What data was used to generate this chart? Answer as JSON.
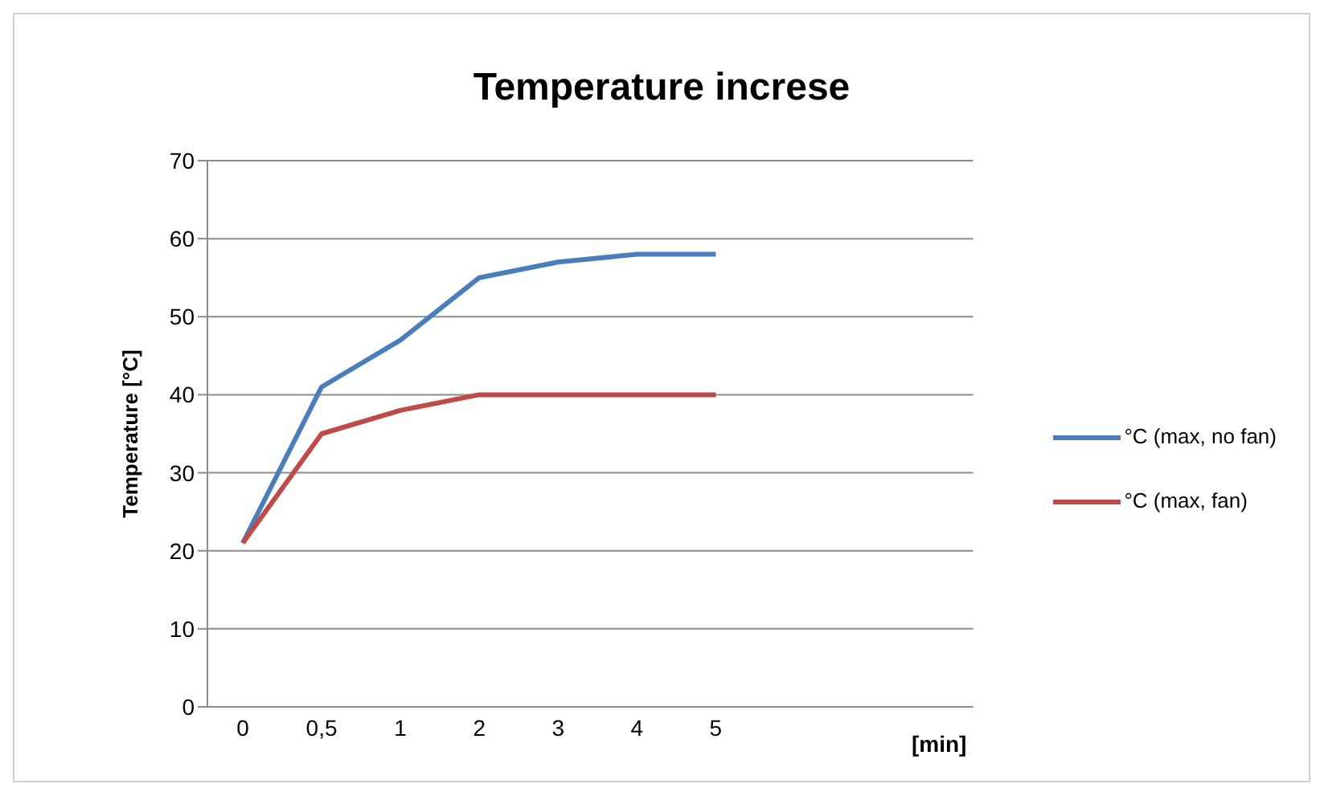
{
  "chart_data": {
    "type": "line",
    "title": "Temperature increse",
    "annotations": [
      "[min]"
    ],
    "ylabel": "Temperature [°C]",
    "categories": [
      "0",
      "0,5",
      "1",
      "2",
      "3",
      "4",
      "5"
    ],
    "series": [
      {
        "name": "°C (max, no fan)",
        "color": "#4a7ebb",
        "values": [
          21,
          41,
          47,
          55,
          57,
          58,
          58
        ]
      },
      {
        "name": "°C (max, fan)",
        "color": "#be4b48",
        "values": [
          21,
          35,
          38,
          40,
          40,
          40,
          40
        ]
      }
    ],
    "ylim": [
      0,
      70
    ],
    "yticks": [
      0,
      10,
      20,
      30,
      40,
      50,
      60,
      70
    ],
    "grid": "y",
    "legend": "right",
    "marker": "none",
    "line_style": "solid"
  }
}
